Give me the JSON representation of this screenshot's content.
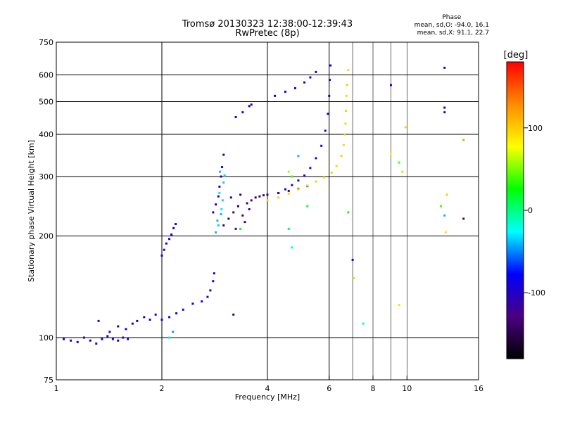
{
  "header": {
    "title_line1": "Tromsø 20130323 12:38:00-12:39:43",
    "title_line2": "RwPretec (8p)"
  },
  "phase_stats": {
    "heading": "Phase",
    "line_o": "mean, sd,O: -94.0, 16.1",
    "line_x": "mean, sd,X:  91.1, 22.7"
  },
  "colors": {
    "grid": "#000000",
    "scale_stops": [
      "#000000",
      "#4b0082",
      "#0000ff",
      "#00ffff",
      "#00ff00",
      "#ffff00",
      "#ff8c00",
      "#ff0000"
    ]
  },
  "chart_data": {
    "type": "scatter",
    "xlabel": "Frequency [MHz]",
    "ylabel": "Stationary phase Virtual Height [km]",
    "xscale": "log",
    "yscale": "log",
    "xlim": [
      1,
      16
    ],
    "ylim": [
      75,
      750
    ],
    "xticks": [
      1,
      2,
      4,
      6,
      8,
      10,
      16
    ],
    "xtick_labels": [
      "1",
      "2",
      "4",
      "6",
      "8",
      "10",
      "16"
    ],
    "xgrid": [
      2,
      4,
      6
    ],
    "xgrid_minor": [
      7,
      8,
      9,
      10
    ],
    "yticks": [
      75,
      100,
      200,
      300,
      400,
      500,
      600,
      750
    ],
    "ytick_labels": [
      "75",
      "100",
      "200",
      "300",
      "400",
      "500",
      "600",
      "750"
    ],
    "ygrid": [
      100,
      200,
      300,
      400,
      500,
      600
    ],
    "grid": true,
    "colorbar": {
      "label": "[deg]",
      "range": [
        -180,
        180
      ],
      "ticks": [
        100,
        0,
        -100
      ],
      "tick_labels": [
        "100",
        "0",
        "-100"
      ]
    },
    "series": [
      {
        "points": [
          [
            1.05,
            99,
            -95
          ],
          [
            1.1,
            98,
            -100
          ],
          [
            1.15,
            97,
            -95
          ],
          [
            1.2,
            100,
            -105
          ],
          [
            1.25,
            98,
            -95
          ],
          [
            1.3,
            96,
            -100
          ],
          [
            1.35,
            99,
            -95
          ],
          [
            1.4,
            101,
            -110
          ],
          [
            1.45,
            99,
            -100
          ],
          [
            1.5,
            98,
            -95
          ],
          [
            1.55,
            100,
            -100
          ],
          [
            1.6,
            99,
            -100
          ],
          [
            1.32,
            112,
            -100
          ],
          [
            1.42,
            104,
            -95
          ],
          [
            1.5,
            108,
            -100
          ],
          [
            1.58,
            106,
            -95
          ],
          [
            1.65,
            110,
            -100
          ],
          [
            1.7,
            112,
            -95
          ],
          [
            1.78,
            115,
            -100
          ],
          [
            1.85,
            113,
            -95
          ],
          [
            1.92,
            117,
            -100
          ],
          [
            2.0,
            113,
            -95
          ],
          [
            2.1,
            115,
            -100
          ],
          [
            2.2,
            118,
            -95
          ],
          [
            2.3,
            121,
            -100
          ],
          [
            2.45,
            126,
            -95
          ],
          [
            2.6,
            128,
            -100
          ],
          [
            2.7,
            132,
            -95
          ],
          [
            2.75,
            138,
            -100
          ],
          [
            2.8,
            147,
            -95
          ],
          [
            2.82,
            155,
            -100
          ],
          [
            2.0,
            175,
            -95
          ],
          [
            2.03,
            182,
            -100
          ],
          [
            2.06,
            190,
            -95
          ],
          [
            2.1,
            196,
            -100
          ],
          [
            2.13,
            202,
            -95
          ],
          [
            2.16,
            211,
            -100
          ],
          [
            2.19,
            217,
            -95
          ],
          [
            2.8,
            235,
            -100
          ],
          [
            2.85,
            248,
            -95
          ],
          [
            2.9,
            262,
            -100
          ],
          [
            2.92,
            280,
            -95
          ],
          [
            2.95,
            300,
            -100
          ],
          [
            2.97,
            320,
            -95
          ],
          [
            3.0,
            348,
            -100
          ]
        ]
      },
      {
        "points": [
          [
            2.85,
            205,
            -40
          ],
          [
            2.9,
            215,
            -35
          ],
          [
            2.95,
            232,
            -40
          ],
          [
            2.98,
            255,
            -35
          ],
          [
            2.92,
            268,
            -30
          ],
          [
            3.0,
            288,
            -35
          ],
          [
            2.88,
            222,
            -40
          ],
          [
            2.96,
            240,
            -30
          ],
          [
            3.02,
            302,
            -35
          ],
          [
            2.93,
            310,
            -40
          ]
        ]
      },
      {
        "points": [
          [
            3.0,
            215,
            -135
          ],
          [
            3.1,
            225,
            -140
          ],
          [
            3.2,
            235,
            -130
          ],
          [
            3.3,
            245,
            -145
          ],
          [
            3.4,
            230,
            -135
          ],
          [
            3.5,
            250,
            -140
          ],
          [
            3.6,
            255,
            -130
          ],
          [
            3.7,
            260,
            -140
          ],
          [
            3.8,
            262,
            -135
          ],
          [
            3.9,
            264,
            -130
          ],
          [
            4.0,
            265,
            -140
          ],
          [
            4.3,
            268,
            -135
          ],
          [
            4.6,
            272,
            -130
          ],
          [
            4.9,
            276,
            -140
          ],
          [
            5.2,
            281,
            -135
          ],
          [
            3.25,
            210,
            -130
          ],
          [
            3.45,
            220,
            -140
          ],
          [
            3.15,
            260,
            -135
          ],
          [
            3.35,
            265,
            -145
          ],
          [
            3.55,
            240,
            -130
          ]
        ]
      },
      {
        "points": [
          [
            4.0,
            255,
            95
          ],
          [
            4.3,
            260,
            100
          ],
          [
            4.6,
            267,
            95
          ],
          [
            4.9,
            275,
            100
          ],
          [
            5.2,
            282,
            95
          ],
          [
            5.5,
            290,
            100
          ],
          [
            5.8,
            298,
            95
          ],
          [
            6.1,
            308,
            100
          ],
          [
            6.3,
            322,
            95
          ],
          [
            6.5,
            345,
            100
          ],
          [
            6.6,
            372,
            95
          ],
          [
            6.65,
            400,
            100
          ],
          [
            6.68,
            430,
            95
          ],
          [
            6.7,
            470,
            100
          ],
          [
            6.72,
            520,
            95
          ],
          [
            6.75,
            560,
            100
          ],
          [
            6.8,
            620,
            95
          ]
        ]
      },
      {
        "points": [
          [
            4.3,
            268,
            -95
          ],
          [
            4.5,
            275,
            -100
          ],
          [
            4.7,
            283,
            -95
          ],
          [
            4.9,
            292,
            -100
          ],
          [
            5.1,
            302,
            -95
          ],
          [
            5.3,
            318,
            -100
          ],
          [
            5.5,
            340,
            -95
          ],
          [
            5.7,
            370,
            -100
          ],
          [
            5.85,
            410,
            -95
          ],
          [
            5.95,
            460,
            -100
          ],
          [
            6.0,
            520,
            -95
          ],
          [
            6.02,
            580,
            -100
          ],
          [
            6.05,
            640,
            -95
          ],
          [
            4.5,
            535,
            -100
          ],
          [
            4.8,
            548,
            -95
          ],
          [
            5.1,
            570,
            -100
          ],
          [
            5.3,
            590,
            -95
          ],
          [
            5.5,
            612,
            -100
          ],
          [
            4.2,
            520,
            -95
          ],
          [
            3.4,
            465,
            -100
          ],
          [
            3.55,
            485,
            -95
          ],
          [
            3.25,
            450,
            -100
          ]
        ]
      },
      {
        "points": [
          [
            4.6,
            310,
            60
          ],
          [
            4.7,
            300,
            40
          ],
          [
            4.9,
            345,
            -40
          ],
          [
            5.2,
            245,
            20
          ],
          [
            6.8,
            235,
            30
          ],
          [
            7.0,
            170,
            -90
          ],
          [
            7.05,
            150,
            60
          ],
          [
            7.5,
            110,
            -20
          ],
          [
            9.0,
            350,
            80
          ],
          [
            9.5,
            330,
            40
          ],
          [
            9.7,
            310,
            60
          ],
          [
            9.9,
            420,
            95
          ],
          [
            9.5,
            125,
            90
          ],
          [
            9.0,
            560,
            -95
          ],
          [
            12.5,
            245,
            40
          ],
          [
            12.8,
            230,
            -40
          ],
          [
            12.9,
            205,
            90
          ],
          [
            13.0,
            265,
            100
          ],
          [
            12.8,
            480,
            -95
          ],
          [
            12.8,
            465,
            -100
          ],
          [
            12.8,
            630,
            -100
          ],
          [
            14.5,
            385,
            120
          ],
          [
            14.5,
            225,
            -130
          ],
          [
            3.35,
            210,
            20
          ],
          [
            3.6,
            490,
            -95
          ],
          [
            4.6,
            210,
            10
          ],
          [
            4.7,
            185,
            -20
          ],
          [
            3.2,
            117,
            -140
          ],
          [
            2.1,
            100,
            -30
          ],
          [
            2.15,
            104,
            -45
          ]
        ]
      }
    ]
  }
}
